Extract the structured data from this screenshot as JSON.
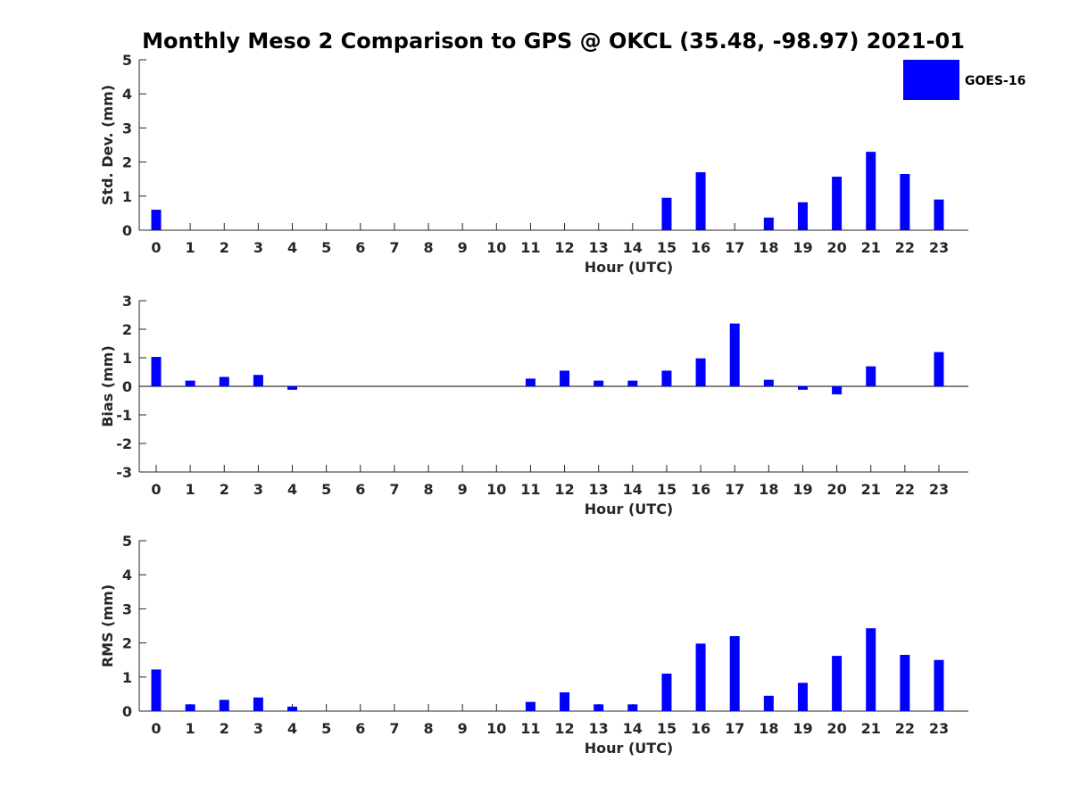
{
  "title": "Monthly Meso 2 Comparison to GPS @ OKCL (35.48, -98.97) 2021-01",
  "legend": {
    "label": "GOES-16",
    "color": "#0000ff",
    "placement": "top-right"
  },
  "chart_data": [
    {
      "type": "bar",
      "ylabel": "Std. Dev. (mm)",
      "xlabel": "Hour (UTC)",
      "ylim": [
        0,
        5
      ],
      "yticks": [
        "0",
        "1",
        "2",
        "3",
        "4",
        "5"
      ],
      "categories": [
        "0",
        "1",
        "2",
        "3",
        "4",
        "5",
        "6",
        "7",
        "8",
        "9",
        "10",
        "11",
        "12",
        "13",
        "14",
        "15",
        "16",
        "17",
        "18",
        "19",
        "20",
        "21",
        "22",
        "23"
      ],
      "values": [
        0.6,
        0,
        0,
        0,
        0,
        0,
        0,
        0,
        0,
        0,
        0,
        0,
        0,
        0,
        0,
        0.95,
        1.7,
        0,
        0.37,
        0.82,
        1.57,
        2.3,
        1.65,
        0.9
      ],
      "grid": false
    },
    {
      "type": "bar",
      "ylabel": "Bias (mm)",
      "xlabel": "Hour (UTC)",
      "ylim": [
        -3,
        3
      ],
      "yticks": [
        "-3",
        "-2",
        "-1",
        "0",
        "1",
        "2",
        "3"
      ],
      "categories": [
        "0",
        "1",
        "2",
        "3",
        "4",
        "5",
        "6",
        "7",
        "8",
        "9",
        "10",
        "11",
        "12",
        "13",
        "14",
        "15",
        "16",
        "17",
        "18",
        "19",
        "20",
        "21",
        "22",
        "23"
      ],
      "values": [
        1.03,
        0.2,
        0.33,
        0.4,
        -0.12,
        0,
        0,
        0,
        0,
        0,
        0,
        0.27,
        0.55,
        0.2,
        0.2,
        0.55,
        0.98,
        2.2,
        0.23,
        -0.12,
        -0.28,
        0.7,
        0,
        1.2
      ],
      "grid": false
    },
    {
      "type": "bar",
      "ylabel": "RMS (mm)",
      "xlabel": "Hour (UTC)",
      "ylim": [
        0,
        5
      ],
      "yticks": [
        "0",
        "1",
        "2",
        "3",
        "4",
        "5"
      ],
      "categories": [
        "0",
        "1",
        "2",
        "3",
        "4",
        "5",
        "6",
        "7",
        "8",
        "9",
        "10",
        "11",
        "12",
        "13",
        "14",
        "15",
        "16",
        "17",
        "18",
        "19",
        "20",
        "21",
        "22",
        "23"
      ],
      "values": [
        1.22,
        0.2,
        0.33,
        0.4,
        0.13,
        0,
        0,
        0,
        0,
        0,
        0,
        0.27,
        0.55,
        0.2,
        0.2,
        1.1,
        1.98,
        2.2,
        0.45,
        0.83,
        1.62,
        2.43,
        1.65,
        1.5
      ],
      "grid": false
    }
  ]
}
